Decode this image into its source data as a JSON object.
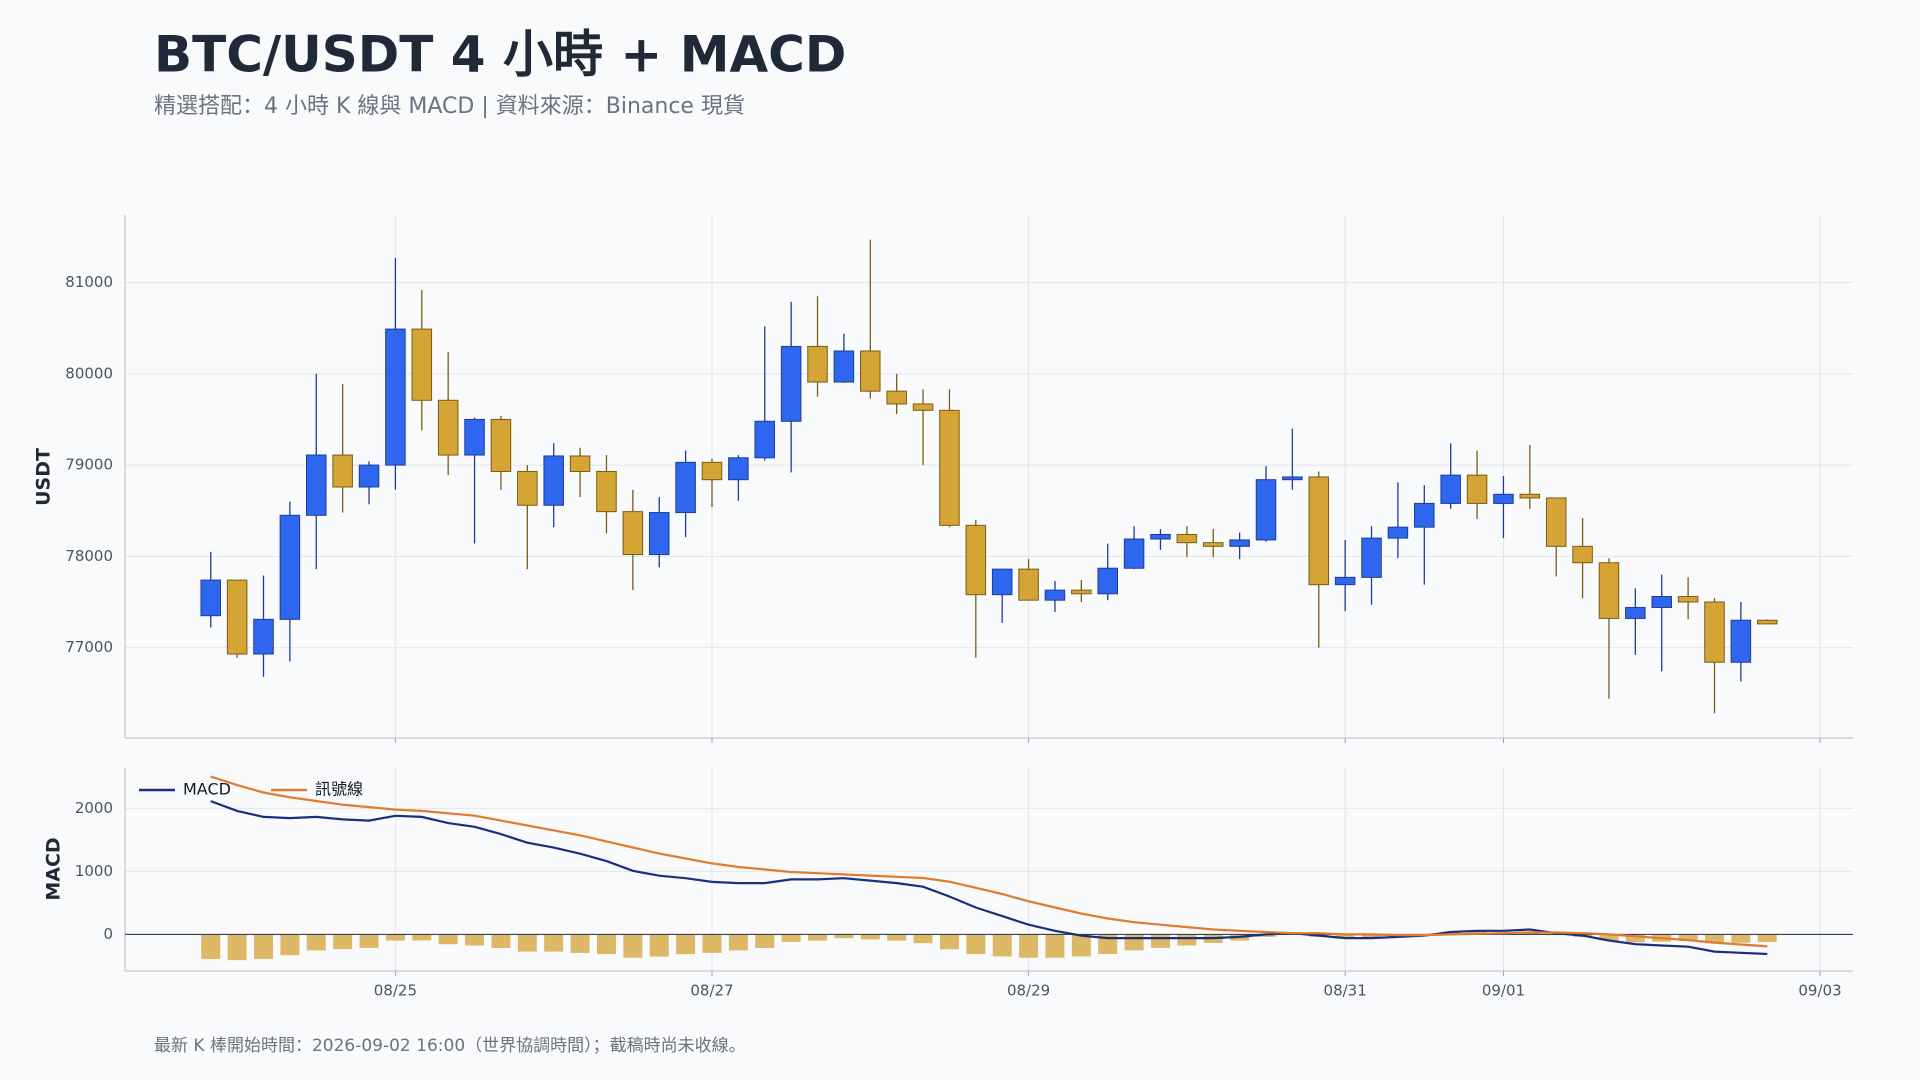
{
  "title": "BTC/USDT 4 小時 + MACD",
  "subtitle": "精選搭配：4 小時 K 線與 MACD | 資料來源：Binance 現貨",
  "footnote": "最新 K 棒開始時間：2026-09-02 16:00（世界協調時間）；截稿時尚未收線。",
  "chart_data": [
    {
      "type": "candlestick",
      "ylabel": "USDT",
      "x": [
        "08/23 20:00",
        "08/24 00:00",
        "08/24 04:00",
        "08/24 08:00",
        "08/24 12:00",
        "08/24 16:00",
        "08/24 20:00",
        "08/25 00:00",
        "08/25 04:00",
        "08/25 08:00",
        "08/25 12:00",
        "08/25 16:00",
        "08/25 20:00",
        "08/26 00:00",
        "08/26 04:00",
        "08/26 08:00",
        "08/26 12:00",
        "08/26 16:00",
        "08/26 20:00",
        "08/27 00:00",
        "08/27 04:00",
        "08/27 08:00",
        "08/27 12:00",
        "08/27 16:00",
        "08/27 20:00",
        "08/28 00:00",
        "08/28 04:00",
        "08/28 08:00",
        "08/28 12:00",
        "08/28 16:00",
        "08/28 20:00",
        "08/29 00:00",
        "08/29 04:00",
        "08/29 08:00",
        "08/29 12:00",
        "08/29 16:00",
        "08/29 20:00",
        "08/30 00:00",
        "08/30 04:00",
        "08/30 08:00",
        "08/30 12:00",
        "08/30 16:00",
        "08/30 20:00",
        "08/31 00:00",
        "08/31 04:00",
        "08/31 08:00",
        "08/31 12:00",
        "08/31 16:00",
        "08/31 20:00",
        "09/01 00:00",
        "09/01 04:00",
        "09/01 08:00",
        "09/01 12:00",
        "09/01 16:00",
        "09/01 20:00",
        "09/02 00:00",
        "09/02 04:00",
        "09/02 08:00",
        "09/02 12:00",
        "09/02 16:00"
      ],
      "open": [
        77350,
        77740,
        76930,
        77310,
        78450,
        79110,
        78760,
        79000,
        80490,
        79710,
        79110,
        79500,
        78930,
        78560,
        79100,
        78930,
        78490,
        78020,
        78480,
        79030,
        78840,
        79080,
        79480,
        80300,
        79910,
        80250,
        79810,
        79670,
        79600,
        78340,
        77580,
        77860,
        77520,
        77630,
        77590,
        77870,
        78190,
        78240,
        78150,
        78110,
        78180,
        78840,
        78870,
        77690,
        77770,
        78200,
        78320,
        78580,
        78890,
        78580,
        78680,
        78640,
        78110,
        77930,
        77320,
        77440,
        77560,
        77500,
        76840,
        77300
      ],
      "high": [
        78050,
        77740,
        77790,
        78600,
        80000,
        79890,
        79040,
        81270,
        80920,
        80240,
        79520,
        79540,
        79000,
        79240,
        79190,
        79110,
        78730,
        78650,
        79160,
        79070,
        79110,
        80520,
        80790,
        80850,
        80440,
        81470,
        80000,
        79830,
        79830,
        78400,
        77860,
        77970,
        77730,
        77740,
        78140,
        78330,
        78300,
        78330,
        78300,
        78260,
        78990,
        79400,
        78930,
        78180,
        78330,
        78810,
        78780,
        79240,
        79160,
        78880,
        79220,
        78640,
        78420,
        77980,
        77650,
        77800,
        77770,
        77540,
        77500,
        77310
      ],
      "low": [
        77220,
        76890,
        76680,
        76850,
        77860,
        78480,
        78570,
        78730,
        79380,
        78890,
        78140,
        78730,
        77860,
        78320,
        78650,
        78250,
        77630,
        77880,
        78210,
        78540,
        78610,
        79050,
        78920,
        79750,
        79900,
        79730,
        79560,
        79000,
        78320,
        76890,
        77270,
        77520,
        77390,
        77500,
        77520,
        77860,
        78070,
        77990,
        77990,
        77970,
        78160,
        78730,
        77000,
        77400,
        77470,
        77980,
        77690,
        78520,
        78410,
        78200,
        78520,
        77780,
        77540,
        76440,
        76920,
        76740,
        77310,
        76280,
        76630,
        77260
      ],
      "close": [
        77740,
        76930,
        77310,
        78450,
        79110,
        78760,
        79000,
        80490,
        79710,
        79110,
        79500,
        78930,
        78560,
        79100,
        78930,
        78490,
        78020,
        78480,
        79030,
        78840,
        79080,
        79480,
        80300,
        79910,
        80250,
        79810,
        79670,
        79600,
        78340,
        77580,
        77860,
        77520,
        77630,
        77590,
        77870,
        78190,
        78240,
        78150,
        78110,
        78180,
        78840,
        78870,
        77690,
        77770,
        78200,
        78320,
        78580,
        78890,
        78580,
        78680,
        78640,
        78110,
        77930,
        77320,
        77440,
        77560,
        77500,
        76840,
        77300,
        77260
      ],
      "up_color": "#2f66f0",
      "up_edge": "#1c3d9a",
      "down_color": "#d4a435",
      "down_edge": "#7a5c14",
      "ylim": [
        76010,
        81740
      ],
      "yticks": [
        77000,
        78000,
        79000,
        80000,
        81000
      ],
      "xlim": [
        "08/23 07:00",
        "09/03 05:00"
      ],
      "xticks": [
        "08/25",
        "08/27",
        "08/29",
        "08/31",
        "09/01",
        "09/03"
      ],
      "grid": true
    },
    {
      "type": "macd",
      "ylabel": "MACD",
      "legend": "upper left",
      "series": [
        {
          "name": "MACD",
          "color": "#1b2f7a",
          "values": [
            2115,
            1960,
            1864,
            1845,
            1864,
            1825,
            1806,
            1882,
            1864,
            1766,
            1707,
            1591,
            1455,
            1377,
            1280,
            1164,
            1009,
            931,
            892,
            834,
            815,
            815,
            873,
            873,
            892,
            854,
            815,
            757,
            601,
            427,
            291,
            155,
            58,
            -19,
            -58,
            -58,
            -58,
            -58,
            -58,
            -39,
            0,
            19,
            -19,
            -58,
            -58,
            -39,
            -19,
            39,
            58,
            58,
            78,
            19,
            -19,
            -97,
            -155,
            -175,
            -194,
            -272,
            -291,
            -310
          ]
        },
        {
          "name": "訊號線",
          "color": "#e07b2f",
          "values": [
            2504,
            2368,
            2252,
            2175,
            2117,
            2058,
            2019,
            1980,
            1960,
            1922,
            1883,
            1806,
            1728,
            1650,
            1573,
            1476,
            1379,
            1282,
            1205,
            1127,
            1069,
            1030,
            991,
            972,
            952,
            933,
            914,
            895,
            836,
            739,
            641,
            525,
            427,
            330,
            252,
            194,
            155,
            117,
            78,
            58,
            39,
            19,
            19,
            0,
            0,
            -10,
            -10,
            0,
            10,
            20,
            30,
            30,
            20,
            0,
            -30,
            -60,
            -90,
            -130,
            -160,
            -190
          ]
        }
      ],
      "histogram": {
        "color": "#ddb866",
        "values": [
          -389,
          -408,
          -388,
          -330,
          -253,
          -233,
          -213,
          -98,
          -96,
          -156,
          -176,
          -215,
          -273,
          -273,
          -293,
          -312,
          -370,
          -351,
          -313,
          -293,
          -254,
          -215,
          -118,
          -99,
          -60,
          -79,
          -99,
          -138,
          -235,
          -312,
          -350,
          -370,
          -369,
          -349,
          -310,
          -252,
          -213,
          -175,
          -136,
          -97,
          -39,
          0,
          -38,
          -58,
          -58,
          -29,
          -9,
          39,
          48,
          38,
          48,
          -11,
          -39,
          -97,
          -125,
          -115,
          -104,
          -142,
          -131,
          -120
        ]
      },
      "ylim": [
        -580,
        2640
      ],
      "yticks": [
        0,
        1000,
        2000
      ],
      "grid": true
    }
  ]
}
